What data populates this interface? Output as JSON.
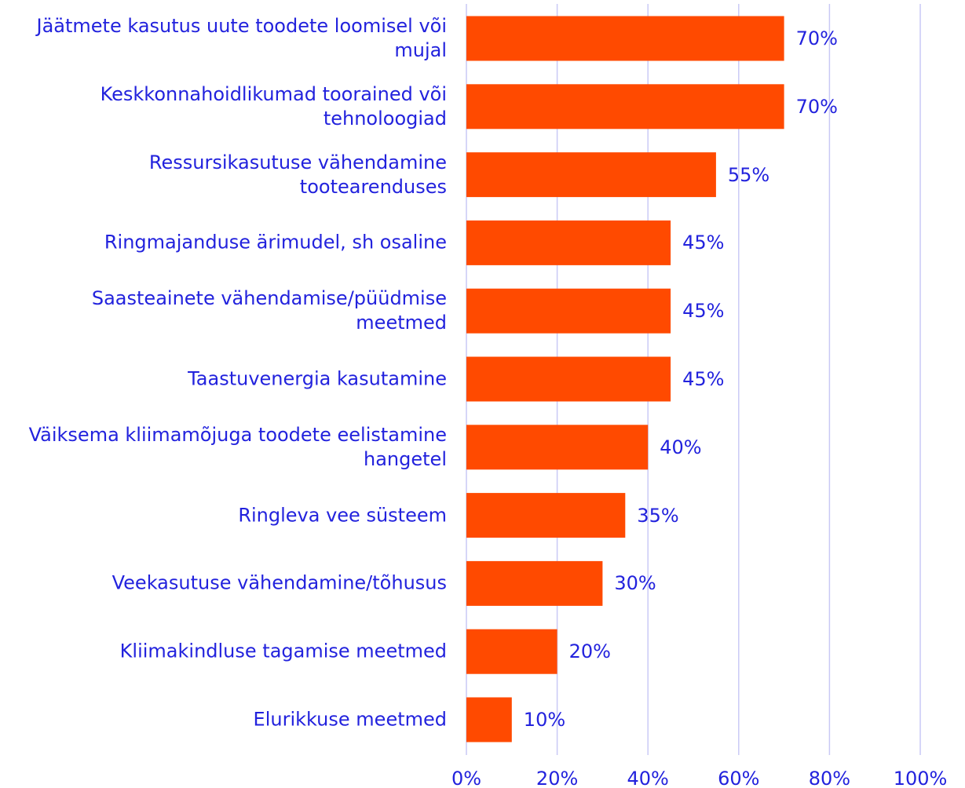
{
  "chart_data": {
    "type": "barh",
    "categories": [
      "Jäätmete kasutus uute toodete loomisel või mujal",
      "Keskkonnahoidlikumad toorained või tehnoloogiad",
      "Ressursikasutuse vähendamine tootearenduses",
      "Ringmajanduse ärimudel, sh osaline",
      "Saasteainete vähendamise/püüdmise meetmed",
      "Taastuvenergia kasutamine",
      "Väiksema kliimamõjuga toodete eelistamine hangetel",
      "Ringleva vee süsteem",
      "Veekasutuse vähendamine/tõhusus",
      "Kliimakindluse tagamise meetmed",
      "Elurikkuse meetmed"
    ],
    "values": [
      70,
      70,
      55,
      45,
      45,
      45,
      40,
      35,
      30,
      20,
      10
    ],
    "value_labels": [
      "70%",
      "70%",
      "55%",
      "45%",
      "45%",
      "45%",
      "40%",
      "35%",
      "30%",
      "20%",
      "10%"
    ],
    "color": "#ff4a00",
    "xlim": [
      0,
      100
    ],
    "xticks": [
      {
        "value": 0,
        "label": "0%"
      },
      {
        "value": 20,
        "label": "20%"
      },
      {
        "value": 40,
        "label": "40%"
      },
      {
        "value": 60,
        "label": "60%"
      },
      {
        "value": 80,
        "label": "80%"
      },
      {
        "value": 100,
        "label": "100%"
      }
    ],
    "grid": true
  }
}
